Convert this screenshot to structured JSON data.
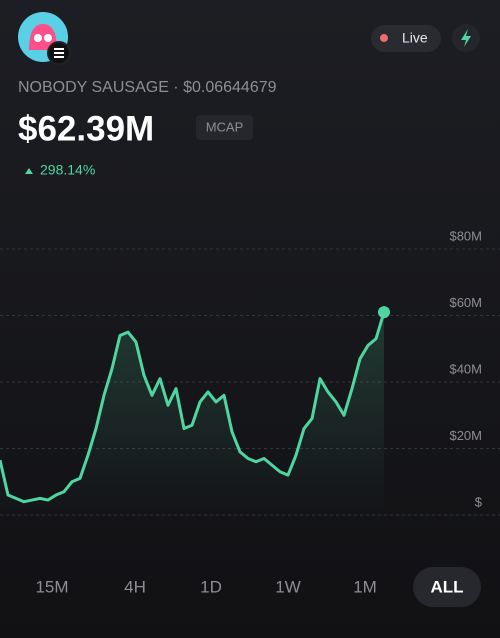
{
  "header": {
    "live": "Live",
    "token": "NOBODY SAUSAGE · $0.06644679",
    "mcap": "$62.39M",
    "mcap_tag": "MCAP",
    "change": "298.14%"
  },
  "chart_data": {
    "type": "line",
    "color": "#4fd6a0",
    "values": [
      16.5,
      6,
      5,
      4,
      4.5,
      5,
      4.5,
      6,
      7,
      10,
      11,
      18,
      26,
      36,
      44,
      54,
      55,
      52,
      42,
      36,
      41,
      33,
      38,
      26,
      27,
      34,
      37,
      34,
      36,
      25,
      19,
      17,
      16,
      17,
      15,
      13,
      12,
      18,
      26,
      29,
      41,
      37,
      34,
      30,
      38,
      47,
      51,
      53,
      61
    ],
    "ylim": [
      0,
      80
    ],
    "yticks": [
      {
        "value": 0,
        "label": "$"
      },
      {
        "value": 20,
        "label": "$20M"
      },
      {
        "value": 40,
        "label": "$40M"
      },
      {
        "value": 60,
        "label": "$60M"
      },
      {
        "value": 80,
        "label": "$80M"
      }
    ],
    "grid": true
  },
  "ranges": [
    "15M",
    "4H",
    "1D",
    "1W",
    "1M",
    "ALL"
  ],
  "selected_range": 5
}
